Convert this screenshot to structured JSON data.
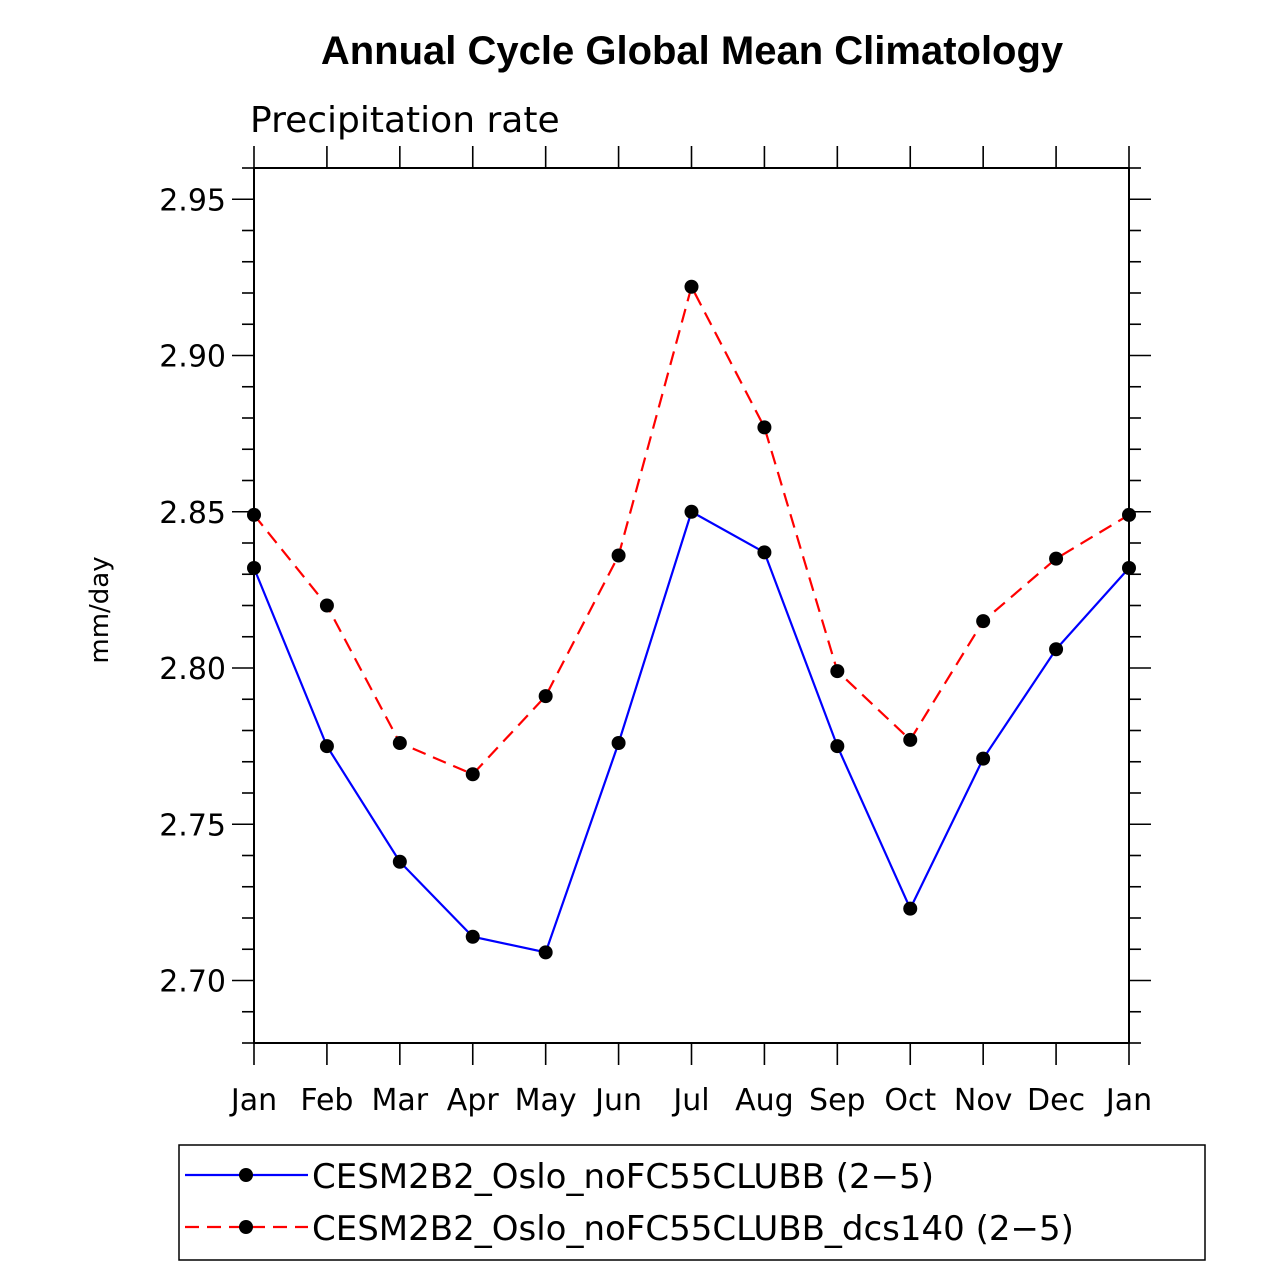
{
  "chart_data": {
    "type": "line",
    "title": "Annual Cycle Global Mean Climatology",
    "subtitle": "Precipitation rate",
    "ylabel": "mm/day",
    "xlabel": "",
    "categories": [
      "Jan",
      "Feb",
      "Mar",
      "Apr",
      "May",
      "Jun",
      "Jul",
      "Aug",
      "Sep",
      "Oct",
      "Nov",
      "Dec",
      "Jan"
    ],
    "ylim": [
      2.68,
      2.96
    ],
    "yticks": [
      "2.70",
      "2.75",
      "2.80",
      "2.85",
      "2.90",
      "2.95"
    ],
    "series": [
      {
        "name": "CESM2B2_Oslo_noFC55CLUBB (2−5)",
        "color": "#0000ff",
        "style": "solid",
        "values": [
          2.832,
          2.775,
          2.738,
          2.714,
          2.709,
          2.776,
          2.85,
          2.837,
          2.775,
          2.723,
          2.771,
          2.806,
          2.832
        ]
      },
      {
        "name": "CESM2B2_Oslo_noFC55CLUBB_dcs140 (2−5)",
        "color": "#ff0000",
        "style": "dashed",
        "values": [
          2.849,
          2.82,
          2.776,
          2.766,
          2.791,
          2.836,
          2.922,
          2.877,
          2.799,
          2.777,
          2.815,
          2.835,
          2.849
        ]
      }
    ]
  }
}
